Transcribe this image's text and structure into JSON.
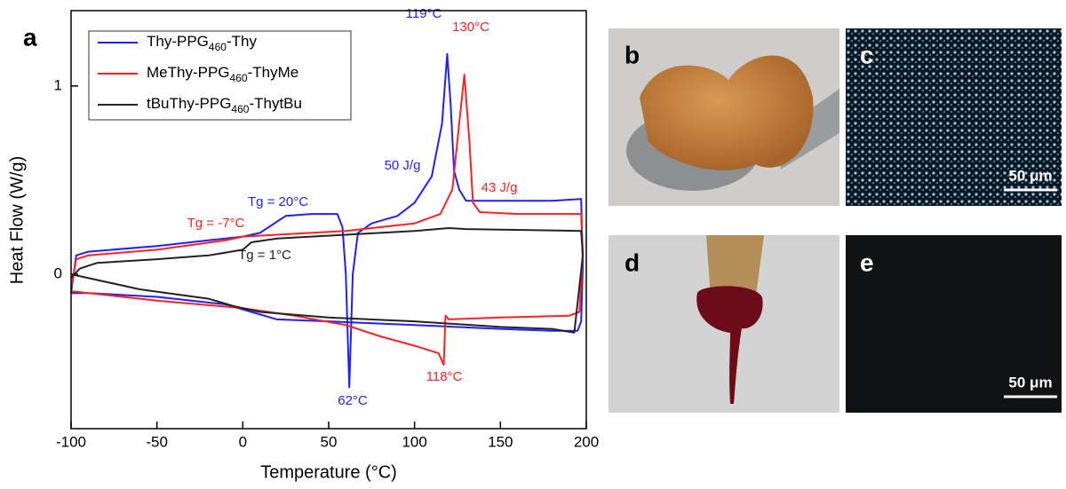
{
  "chart_data": {
    "type": "line",
    "panel_label": "a",
    "xlabel": "Temperature (°C)",
    "ylabel": "Heat Flow (W/g)",
    "xlim": [
      -100,
      200
    ],
    "ylim": [
      -0.82,
      1.4
    ],
    "xticks": [
      -100,
      -50,
      0,
      50,
      100,
      150,
      200
    ],
    "yticks": [
      0,
      1
    ],
    "series": [
      {
        "name": "Thy-PPG460-Thy",
        "color": "#1f1fff",
        "x": [
          -100,
          -97,
          -90,
          -50,
          -20,
          0,
          10,
          20,
          25,
          40,
          55,
          58,
          60,
          62,
          64,
          67,
          75,
          90,
          100,
          110,
          116,
          119,
          121,
          123,
          126,
          130,
          150,
          180,
          197,
          198,
          197,
          195,
          180,
          150,
          100,
          50,
          20,
          5,
          -10,
          -50,
          -90,
          -100
        ],
        "values": [
          -0.1,
          0.1,
          0.12,
          0.15,
          0.18,
          0.2,
          0.22,
          0.28,
          0.31,
          0.32,
          0.32,
          0.25,
          0.0,
          -0.6,
          0.0,
          0.22,
          0.27,
          0.31,
          0.38,
          0.52,
          0.8,
          1.17,
          0.9,
          0.55,
          0.45,
          0.39,
          0.39,
          0.39,
          0.4,
          0.05,
          -0.25,
          -0.3,
          -0.3,
          -0.29,
          -0.27,
          -0.25,
          -0.24,
          -0.2,
          -0.16,
          -0.12,
          -0.1,
          -0.1
        ]
      },
      {
        "name": "MeThy-PPG460-ThyMe",
        "color": "#ff2020",
        "x": [
          -100,
          -97,
          -90,
          -50,
          -10,
          0,
          20,
          60,
          100,
          115,
          122,
          126,
          129,
          132,
          134,
          138,
          160,
          197,
          198,
          196,
          190,
          150,
          120,
          118,
          117,
          114,
          100,
          80,
          60,
          30,
          0,
          -50,
          -100
        ],
        "values": [
          -0.08,
          0.08,
          0.1,
          0.13,
          0.18,
          0.2,
          0.21,
          0.23,
          0.27,
          0.32,
          0.45,
          0.8,
          1.06,
          0.7,
          0.38,
          0.33,
          0.32,
          0.32,
          0.1,
          -0.2,
          -0.22,
          -0.23,
          -0.24,
          -0.22,
          -0.48,
          -0.42,
          -0.38,
          -0.33,
          -0.27,
          -0.22,
          -0.18,
          -0.14,
          -0.09
        ]
      },
      {
        "name": "tBuThy-PPG460-ThytBu",
        "color": "#222222",
        "x": [
          -100,
          -95,
          -85,
          -50,
          -20,
          0,
          5,
          20,
          60,
          100,
          120,
          130,
          197,
          198,
          193,
          180,
          150,
          100,
          50,
          10,
          -5,
          -20,
          -60,
          -100
        ],
        "values": [
          -0.02,
          0.03,
          0.06,
          0.08,
          0.1,
          0.13,
          0.17,
          0.19,
          0.21,
          0.23,
          0.245,
          0.24,
          0.23,
          0.1,
          -0.31,
          -0.29,
          -0.28,
          -0.25,
          -0.23,
          -0.2,
          -0.17,
          -0.13,
          -0.08,
          0.0
        ]
      }
    ],
    "annotations": [
      {
        "text": "119°C",
        "color": "#1f1fff"
      },
      {
        "text": "130°C",
        "color": "#ff2020"
      },
      {
        "text": "50 J/g",
        "color": "#1f1fff"
      },
      {
        "text": "43 J/g",
        "color": "#ff2020"
      },
      {
        "text": "Tg = 20°C",
        "color": "#1f1fff"
      },
      {
        "text": "Tg = -7°C",
        "color": "#ff2020"
      },
      {
        "text": "Tg = 1°C",
        "color": "#222222"
      },
      {
        "text": "62°C",
        "color": "#1f1fff"
      },
      {
        "text": "118°C",
        "color": "#ff2020"
      }
    ]
  },
  "panels": [
    {
      "label": "b"
    },
    {
      "label": "c",
      "scale_bar": "50 μm"
    },
    {
      "label": "d"
    },
    {
      "label": "e",
      "scale_bar": "50 μm"
    }
  ]
}
